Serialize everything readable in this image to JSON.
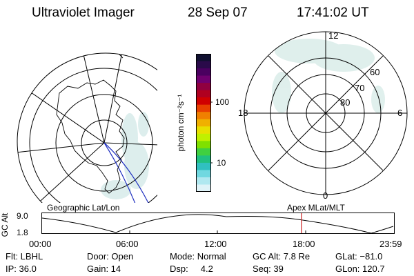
{
  "header": {
    "title": "Ultraviolet Imager",
    "date": "28 Sep 07",
    "time": "17:41:02 UT"
  },
  "colorbar": {
    "unit_label": "photon cm⁻²s⁻¹",
    "ticks": [
      "100",
      "10"
    ],
    "colors": [
      "#101030",
      "#2a0a4a",
      "#4a0060",
      "#700070",
      "#900040",
      "#b00020",
      "#d00000",
      "#e84000",
      "#f08000",
      "#f0b000",
      "#e8e000",
      "#c0f000",
      "#80e000",
      "#40d040",
      "#20c080",
      "#30c0c0",
      "#70d8e0",
      "#b0e8f0",
      "#dff3f8"
    ]
  },
  "left_map": {
    "label": "Geographic Lat/Lon"
  },
  "right_map": {
    "label": "Apex MLat/MLT",
    "mlt_labels": {
      "top": "12",
      "bottom": "0",
      "left": "18",
      "right": "6"
    },
    "lat_labels": [
      "60",
      "70",
      "80"
    ]
  },
  "altitude_plot": {
    "axis_title": "GC Alt",
    "y_ticks": [
      "9.0",
      "1.8"
    ],
    "x_ticks": [
      "00:00",
      "06:00",
      "12:00",
      "18:00",
      "23:59"
    ],
    "current_time_fraction": 0.7369,
    "marker_color": "#cc2222"
  },
  "status": {
    "filter": "Flt: LBHL",
    "ip": "IP: 36.0",
    "door": "Door: Open",
    "gain": "Gain: 14",
    "mode": "Mode: Normal",
    "dsp": "Dsp:     4.2",
    "gc_alt": "GC Alt: 7.8 Re",
    "seq": "Seq: 39",
    "glat": "GLat: −81.0",
    "glon": "GLon: 120.7"
  }
}
